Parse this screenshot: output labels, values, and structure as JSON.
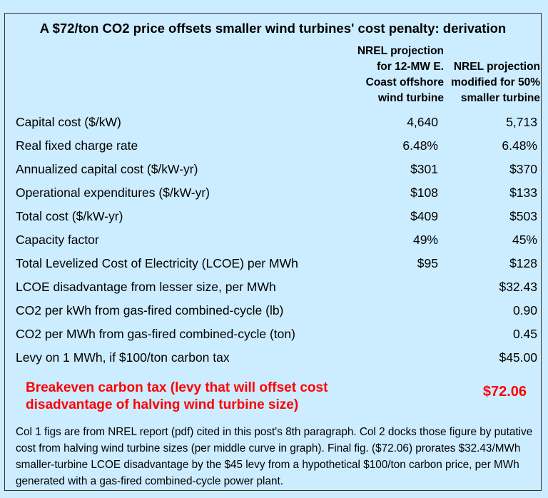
{
  "title": "A $72/ton CO2 price offsets smaller wind turbines' cost penalty: derivation",
  "columns": {
    "col1_header": "NREL projection\nfor 12-MW E.\nCoast offshore\nwind turbine",
    "col2_header": "NREL projection\nmodified for 50%\nsmaller turbine"
  },
  "rows": [
    {
      "label": "Capital cost ($/kW)",
      "col1": "4,640",
      "col2": "5,713"
    },
    {
      "label": "Real fixed charge rate",
      "col1": "6.48%",
      "col2": "6.48%"
    },
    {
      "label": "Annualized capital cost ($/kW-yr)",
      "col1": "$301",
      "col2": "$370"
    },
    {
      "label": "Operational expenditures ($/kW-yr)",
      "col1": "$108",
      "col2": "$133"
    },
    {
      "label": "Total cost ($/kW-yr)",
      "col1": "$409",
      "col2": "$503"
    },
    {
      "label": "Capacity factor",
      "col1": "49%",
      "col2": "45%"
    },
    {
      "label": "Total Levelized Cost of Electricity (LCOE) per MWh",
      "col1": "$95",
      "col2": "$128"
    },
    {
      "label": "LCOE disadvantage from lesser size, per MWh",
      "col1": "",
      "col2": "$32.43"
    },
    {
      "label": "CO2 per kWh from gas-fired combined-cycle (lb)",
      "col1": "",
      "col2": "0.90"
    },
    {
      "label": "CO2 per MWh from gas-fired combined-cycle (ton)",
      "col1": "",
      "col2": "0.45"
    },
    {
      "label": "Levy on 1 MWh, if $100/ton carbon tax",
      "col1": "",
      "col2": "$45.00"
    }
  ],
  "breakeven": {
    "label": "Breakeven carbon tax (levy that will offset cost disadvantage of halving wind turbine size)",
    "value": "$72.06"
  },
  "note": "Col 1 figs are from NREL report (pdf) cited in this post's 8th paragraph. Col 2 docks those figure by putative cost from halving wind turbine sizes (per middle curve in graph). Final fig. ($72.06) prorates $32.43/MWh smaller-turbine LCOE disadvantage by the $45 levy from a hypothetical $100/ton carbon price, per MWh generated with a gas-fired combined-cycle power plant.",
  "colors": {
    "background": "#ccecff",
    "highlight": "#ff0000"
  }
}
